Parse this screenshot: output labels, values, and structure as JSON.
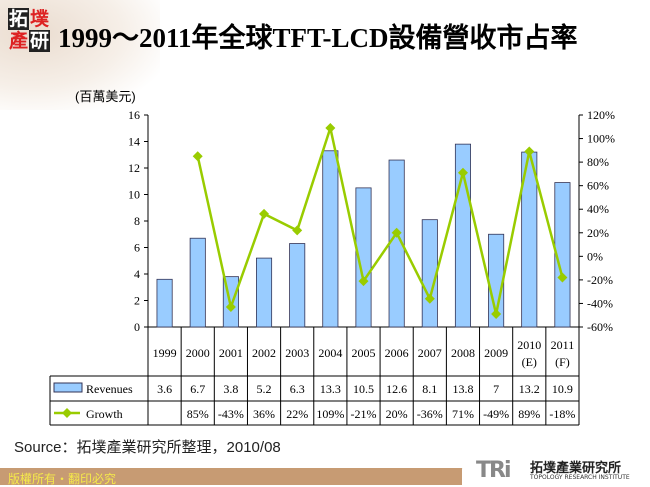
{
  "header": {
    "title": "1999～2011年全球TFT-LCD設備營收市占率",
    "logo_text": "拓墣產研"
  },
  "chart_data": {
    "type": "bar+line",
    "title": "1999～2011年全球TFT-LCD設備營收市占率",
    "ylabel": "(百萬美元)",
    "categories": [
      "1999",
      "2000",
      "2001",
      "2002",
      "2003",
      "2004",
      "2005",
      "2006",
      "2007",
      "2008",
      "2009",
      "2010\n(E)",
      "2011\n(F)"
    ],
    "series": [
      {
        "name": "Revenues",
        "type": "bar",
        "axis": "left",
        "color": "#99CCFF",
        "values": [
          3.6,
          6.7,
          3.8,
          5.2,
          6.3,
          13.3,
          10.5,
          12.6,
          8.1,
          13.8,
          7,
          13.2,
          10.9
        ]
      },
      {
        "name": "Growth",
        "type": "line",
        "axis": "right",
        "color": "#99CC00",
        "values": [
          null,
          85,
          -43,
          36,
          22,
          109,
          -21,
          20,
          -36,
          71,
          -49,
          89,
          -18
        ]
      }
    ],
    "table_values": {
      "Revenues": [
        "3.6",
        "6.7",
        "3.8",
        "5.2",
        "6.3",
        "13.3",
        "10.5",
        "12.6",
        "8.1",
        "13.8",
        "7",
        "13.2",
        "10.9"
      ],
      "Growth": [
        "",
        "85%",
        "-43%",
        "36%",
        "22%",
        "109%",
        "-21%",
        "20%",
        "-36%",
        "71%",
        "-49%",
        "89%",
        "-18%"
      ]
    },
    "ylim": [
      0,
      16
    ],
    "yticks": [
      "0",
      "2",
      "4",
      "6",
      "8",
      "10",
      "12",
      "14",
      "16"
    ],
    "y2lim": [
      -60,
      120
    ],
    "y2ticks": [
      "-60%",
      "-40%",
      "-20%",
      "0%",
      "20%",
      "40%",
      "60%",
      "80%",
      "100%",
      "120%"
    ],
    "grid": false,
    "legend": "data-table"
  },
  "source": "Source：拓墣產業研究所整理，2010/08",
  "footer": {
    "copyright": "版權所有・翻印必究",
    "brand": "TRi",
    "brand_cn": "拓墣產業研究所",
    "brand_en": "TOPOLOGY RESEARCH INSTITUTE"
  }
}
